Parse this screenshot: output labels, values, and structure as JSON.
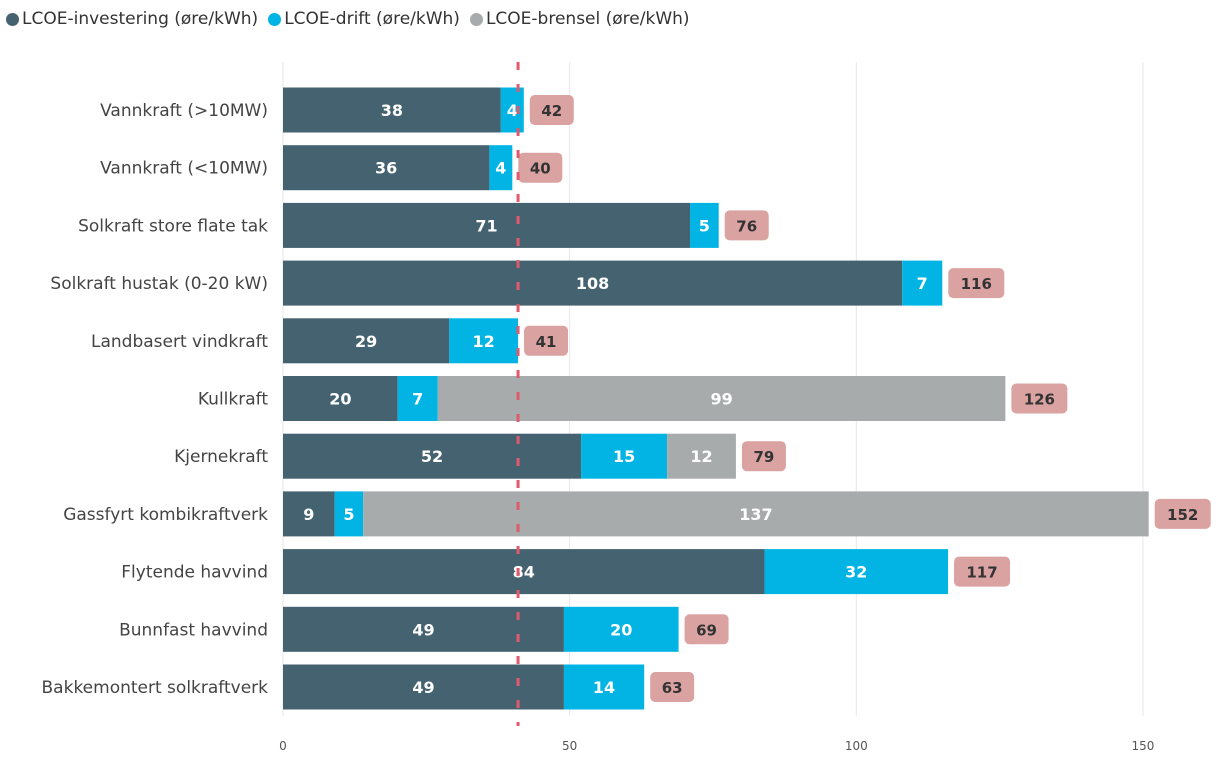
{
  "chart_data": {
    "type": "bar",
    "orientation": "horizontal",
    "stacked": true,
    "title": "",
    "xlabel": "",
    "ylabel": "",
    "categories": [
      "Vannkraft (>10MW)",
      "Vannkraft (<10MW)",
      "Solkraft store flate tak",
      "Solkraft hustak (0-20 kW)",
      "Landbasert vindkraft",
      "Kullkraft",
      "Kjernekraft",
      "Gassfyrt kombikraftverk",
      "Flytende havvind",
      "Bunnfast havvind",
      "Bakkemontert solkraftverk"
    ],
    "series": [
      {
        "name": "LCOE-investering (øre/kWh)",
        "color": "#44626f",
        "values": [
          38,
          36,
          71,
          108,
          29,
          20,
          52,
          9,
          84,
          49,
          49
        ]
      },
      {
        "name": "LCOE-drift (øre/kWh)",
        "color": "#01b4e4",
        "values": [
          4,
          4,
          5,
          7,
          12,
          7,
          15,
          5,
          32,
          20,
          14
        ]
      },
      {
        "name": "LCOE-brensel (øre/kWh)",
        "color": "#a7abab",
        "values": [
          null,
          null,
          null,
          null,
          null,
          99,
          12,
          137,
          null,
          null,
          null
        ]
      }
    ],
    "totals": [
      42,
      40,
      76,
      116,
      41,
      126,
      79,
      152,
      117,
      69,
      63
    ],
    "total_label_color": "#dba2a2",
    "xlim": [
      0,
      165
    ],
    "xticks": [
      0,
      50,
      100,
      150
    ],
    "reference_line": {
      "value": 41,
      "color": "#e05a6e",
      "style": "dashed"
    },
    "grid": "vertical",
    "legend_position": "top-left"
  }
}
